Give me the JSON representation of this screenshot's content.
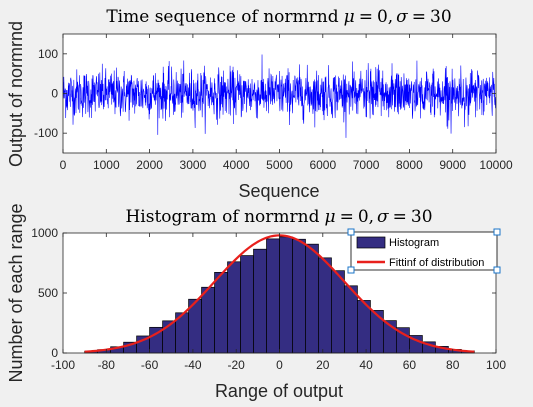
{
  "window": {
    "background": "#f0f0f0"
  },
  "chart_data": [
    {
      "type": "line",
      "title": "Time sequence of normrnd μ = 0, σ = 30",
      "title_parts": {
        "prefix": "Time sequence of normrnd",
        "mu_label": "μ",
        "mu_value": "0",
        "sigma_label": "σ",
        "sigma_value": "30"
      },
      "xlabel": "Sequence",
      "ylabel": "Output of normrnd",
      "xlim": [
        0,
        10000
      ],
      "ylim": [
        -150,
        150
      ],
      "xticks": [
        "0",
        "1000",
        "2000",
        "3000",
        "4000",
        "5000",
        "6000",
        "7000",
        "8000",
        "9000",
        "10000"
      ],
      "xtick_values": [
        0,
        1000,
        2000,
        3000,
        4000,
        5000,
        6000,
        7000,
        8000,
        9000,
        10000
      ],
      "yticks": [
        "-100",
        "0",
        "100"
      ],
      "ytick_values": [
        -100,
        0,
        100
      ],
      "grid": false,
      "series": [
        {
          "points": 10000,
          "mean": 0,
          "std": 30,
          "min": -120,
          "max": 120,
          "color": "#0000ff"
        }
      ]
    },
    {
      "type": "bar",
      "title": "Histogram of normrnd μ = 0, σ = 30",
      "title_parts": {
        "prefix": "Histogram of normrnd",
        "mu_label": "μ",
        "mu_value": "0",
        "sigma_label": "σ",
        "sigma_value": "30"
      },
      "xlabel": "Range of output",
      "ylabel": "Number of each range",
      "xlim": [
        -100,
        100
      ],
      "ylim": [
        0,
        1000
      ],
      "xticks": [
        "-100",
        "-80",
        "-60",
        "-40",
        "-20",
        "0",
        "20",
        "40",
        "60",
        "80",
        "100"
      ],
      "xtick_values": [
        -100,
        -80,
        -60,
        -40,
        -20,
        0,
        20,
        40,
        60,
        80,
        100
      ],
      "yticks": [
        "0",
        "500",
        "1000"
      ],
      "ytick_values": [
        0,
        500,
        1000
      ],
      "grid": false,
      "legend_position": "top-right",
      "bin_edges": [
        -90,
        -84,
        -78,
        -72,
        -66,
        -60,
        -54,
        -48,
        -42,
        -36,
        -30,
        -24,
        -18,
        -12,
        -6,
        0,
        6,
        12,
        18,
        24,
        30,
        36,
        42,
        48,
        54,
        60,
        66,
        72,
        78,
        84,
        90
      ],
      "series": [
        {
          "name": "Histogram",
          "color": "#342d82",
          "values": [
            15,
            28,
            52,
            90,
            142,
            214,
            268,
            335,
            448,
            548,
            672,
            760,
            812,
            865,
            951,
            968,
            948,
            907,
            793,
            686,
            560,
            438,
            355,
            270,
            211,
            146,
            93,
            55,
            30,
            18
          ]
        },
        {
          "name": "Fittinf of distribution",
          "type": "line",
          "color": "#e8201c",
          "mean": 0,
          "std": 30,
          "peak": 980,
          "x_range": [
            -90,
            90
          ]
        }
      ]
    }
  ]
}
